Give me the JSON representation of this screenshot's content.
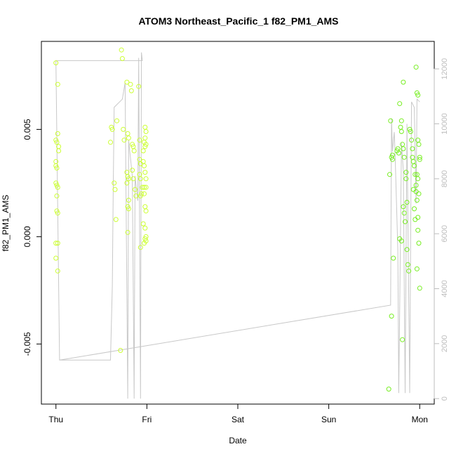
{
  "chart_data": {
    "type": "scatter",
    "title": "ATOM3 Northeast_Pacific_1 f82_PM1_AMS",
    "xlabel": "Date",
    "ylabel": "f82_PM1_AMS",
    "x_unit": "days since Thu 00:00",
    "xlim": [
      -0.16,
      4.16
    ],
    "ylim": [
      -0.0078,
      0.0091
    ],
    "x_ticks": [
      {
        "value": 0,
        "label": "Thu"
      },
      {
        "value": 1,
        "label": "Fri"
      },
      {
        "value": 2,
        "label": "Sat"
      },
      {
        "value": 3,
        "label": "Sun"
      },
      {
        "value": 4,
        "label": "Mon"
      }
    ],
    "y_ticks": [
      {
        "value": -0.005,
        "label": "-0.005"
      },
      {
        "value": 0.0,
        "label": "0.000"
      },
      {
        "value": 0.005,
        "label": "0.005"
      }
    ],
    "y2lim": [
      -200,
      13000
    ],
    "y2_ticks": [
      {
        "value": 0,
        "label": "0"
      },
      {
        "value": 2000,
        "label": "2000"
      },
      {
        "value": 4000,
        "label": "4000"
      },
      {
        "value": 6000,
        "label": "6000"
      },
      {
        "value": 8000,
        "label": "8000"
      },
      {
        "value": 10000,
        "label": "10000"
      },
      {
        "value": 12000,
        "label": "12000"
      }
    ],
    "grid": false,
    "legend": "none",
    "colors": {
      "early_points": "#ccff33",
      "late_points": "#77ee22",
      "altitude_line": "#c8c8c8",
      "axis": "#000000",
      "right_axis": "#bdbdbd"
    },
    "series": [
      {
        "kind": "points",
        "points": [
          [
            0.0,
            0.0081
          ],
          [
            0.02,
            0.0071
          ],
          [
            0.0,
            0.0045
          ],
          [
            0.01,
            0.0044
          ],
          [
            0.02,
            0.0048
          ],
          [
            0.03,
            0.0042
          ],
          [
            0.03,
            0.004
          ],
          [
            0.0,
            0.0035
          ],
          [
            0.0,
            0.0033
          ],
          [
            0.01,
            0.0032
          ],
          [
            0.0,
            0.0025
          ],
          [
            0.01,
            0.0024
          ],
          [
            0.02,
            0.0023
          ],
          [
            0.01,
            0.0019
          ],
          [
            0.01,
            0.0012
          ],
          [
            0.02,
            0.0011
          ],
          [
            0.0,
            -0.0003
          ],
          [
            0.02,
            -0.0003
          ],
          [
            0.0,
            -0.001
          ],
          [
            0.02,
            -0.0016
          ],
          [
            0.6,
            0.0044
          ],
          [
            0.61,
            0.0051
          ],
          [
            0.62,
            0.005
          ],
          [
            0.64,
            0.0025
          ],
          [
            0.65,
            0.0022
          ],
          [
            0.66,
            0.0008
          ],
          [
            0.67,
            0.0054
          ],
          [
            0.72,
            0.0087
          ],
          [
            0.73,
            0.0083
          ],
          [
            0.74,
            0.005
          ],
          [
            0.75,
            0.0045
          ],
          [
            0.71,
            -0.0053
          ],
          [
            0.78,
            0.0072
          ],
          [
            0.79,
            0.0048
          ],
          [
            0.8,
            0.0046
          ],
          [
            0.78,
            0.003
          ],
          [
            0.79,
            0.0028
          ],
          [
            0.8,
            0.0027
          ],
          [
            0.78,
            0.0025
          ],
          [
            0.8,
            0.0017
          ],
          [
            0.79,
            0.0014
          ],
          [
            0.8,
            0.0013
          ],
          [
            0.79,
            0.0002
          ],
          [
            0.82,
            0.0071
          ],
          [
            0.83,
            0.0068
          ],
          [
            0.84,
            0.0043
          ],
          [
            0.85,
            0.0042
          ],
          [
            0.86,
            0.004
          ],
          [
            0.84,
            0.0031
          ],
          [
            0.85,
            0.0027
          ],
          [
            0.87,
            0.0022
          ],
          [
            0.88,
            0.0019
          ],
          [
            0.91,
            0.007
          ],
          [
            0.92,
            0.0045
          ],
          [
            0.92,
            0.0036
          ],
          [
            0.93,
            0.0034
          ],
          [
            0.92,
            0.0029
          ],
          [
            0.93,
            0.0027
          ],
          [
            0.94,
            0.002
          ],
          [
            0.95,
            0.0023
          ],
          [
            0.93,
            0.0019
          ],
          [
            0.93,
            -0.0005
          ],
          [
            0.98,
            0.0051
          ],
          [
            0.99,
            0.0049
          ],
          [
            0.98,
            0.0046
          ],
          [
            0.97,
            0.0044
          ],
          [
            0.99,
            0.0043
          ],
          [
            0.98,
            0.0042
          ],
          [
            0.96,
            0.004
          ],
          [
            0.96,
            0.0035
          ],
          [
            0.97,
            0.0033
          ],
          [
            0.98,
            0.003
          ],
          [
            0.99,
            0.0027
          ],
          [
            0.97,
            0.0023
          ],
          [
            0.99,
            0.0023
          ],
          [
            0.97,
            0.002
          ],
          [
            0.98,
            0.0014
          ],
          [
            0.99,
            0.0012
          ],
          [
            0.96,
            0.0006
          ],
          [
            0.98,
            0.0004
          ],
          [
            0.99,
            0.0
          ],
          [
            0.98,
            -0.0001
          ],
          [
            0.99,
            -0.0002
          ],
          [
            0.97,
            -0.0003
          ]
        ]
      },
      {
        "kind": "points",
        "points": [
          [
            3.66,
            -0.0071
          ],
          [
            3.67,
            0.0029
          ],
          [
            3.7,
            0.0038
          ],
          [
            3.69,
            0.0037
          ],
          [
            3.7,
            0.0036
          ],
          [
            3.69,
            -0.0037
          ],
          [
            3.68,
            0.0054
          ],
          [
            3.71,
            -0.001
          ],
          [
            3.75,
            0.004
          ],
          [
            3.76,
            0.0041
          ],
          [
            3.77,
            0.0039
          ],
          [
            3.78,
            0.0062
          ],
          [
            3.79,
            0.0051
          ],
          [
            3.8,
            0.0049
          ],
          [
            3.8,
            0.0054
          ],
          [
            3.81,
            0.0043
          ],
          [
            3.82,
            0.0041
          ],
          [
            3.83,
            0.0037
          ],
          [
            3.78,
            -0.0001
          ],
          [
            3.8,
            -0.0002
          ],
          [
            3.81,
            -0.0048
          ],
          [
            3.82,
            0.0072
          ],
          [
            3.82,
            0.0014
          ],
          [
            3.83,
            0.0011
          ],
          [
            3.84,
            0.0007
          ],
          [
            3.85,
            0.003
          ],
          [
            3.85,
            0.0027
          ],
          [
            3.86,
            0.0016
          ],
          [
            3.86,
            -0.0006
          ],
          [
            3.87,
            -0.0013
          ],
          [
            3.88,
            -0.0016
          ],
          [
            3.89,
            0.005
          ],
          [
            3.9,
            0.0049
          ],
          [
            3.91,
            0.0045
          ],
          [
            3.92,
            0.0041
          ],
          [
            3.92,
            0.0037
          ],
          [
            3.93,
            0.0035
          ],
          [
            3.94,
            0.0033
          ],
          [
            3.95,
            0.0029
          ],
          [
            3.96,
            0.0024
          ],
          [
            3.96,
            0.0021
          ],
          [
            3.97,
            0.0017
          ],
          [
            3.98,
            0.0009
          ],
          [
            3.98,
            0.0003
          ],
          [
            3.99,
            -0.0003
          ],
          [
            3.96,
            0.0079
          ],
          [
            3.97,
            0.0067
          ],
          [
            3.98,
            0.0066
          ],
          [
            3.99,
            0.0043
          ],
          [
            4.0,
            0.0037
          ],
          [
            4.0,
            0.0036
          ],
          [
            3.98,
            0.0027
          ],
          [
            3.99,
            0.002
          ],
          [
            3.97,
            -0.0015
          ],
          [
            4.0,
            -0.0024
          ],
          [
            3.95,
            0.0008
          ],
          [
            3.94,
            0.0013
          ],
          [
            3.93,
            0.0022
          ],
          [
            3.97,
            0.0029
          ],
          [
            3.98,
            0.0045
          ]
        ]
      },
      {
        "kind": "line",
        "axis": "right",
        "points": [
          [
            0.0,
            12300
          ],
          [
            0.04,
            1400
          ],
          [
            0.6,
            1400
          ],
          [
            0.62,
            4100
          ],
          [
            0.63,
            7600
          ],
          [
            0.64,
            10600
          ],
          [
            0.73,
            10900
          ],
          [
            0.76,
            11500
          ],
          [
            0.79,
            0
          ],
          [
            0.8,
            9400
          ],
          [
            0.84,
            8100
          ],
          [
            0.86,
            0
          ],
          [
            0.87,
            8100
          ],
          [
            0.9,
            7200
          ],
          [
            0.91,
            12400
          ],
          [
            0.93,
            0
          ],
          [
            0.94,
            12600
          ],
          [
            0.95,
            12300
          ],
          [
            0.0,
            12300
          ],
          [
            0.04,
            1400
          ],
          [
            3.68,
            3400
          ],
          [
            3.69,
            10200
          ],
          [
            3.7,
            9000
          ],
          [
            3.72,
            9700
          ],
          [
            3.73,
            8800
          ],
          [
            3.76,
            5400
          ],
          [
            3.77,
            200
          ],
          [
            3.8,
            9300
          ],
          [
            3.82,
            8300
          ],
          [
            3.84,
            200
          ],
          [
            3.86,
            10000
          ],
          [
            3.89,
            200
          ],
          [
            3.91,
            10800
          ],
          [
            3.94,
            10600
          ],
          [
            3.96,
            7100
          ],
          [
            3.97,
            10900
          ],
          [
            4.0,
            10800
          ]
        ]
      }
    ]
  }
}
